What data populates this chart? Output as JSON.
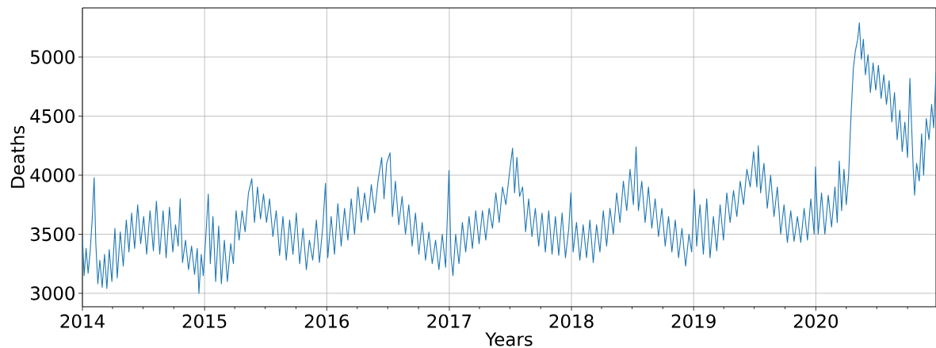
{
  "chart_data": {
    "type": "line",
    "xlabel": "Years",
    "ylabel": "Deaths",
    "grid": true,
    "marker": "none",
    "line_style": "solid",
    "xlim": [
      "2014-01-01",
      "2020-12-25"
    ],
    "ylim": [
      2886,
      5416
    ],
    "xticks": [
      "2014",
      {
        "value": "2014-04",
        "label": null
      },
      {
        "value": "2014-07",
        "label": null
      },
      {
        "value": "2014-10",
        "label": null
      },
      "2015",
      {
        "value": "2015-04",
        "label": null
      },
      {
        "value": "2015-07",
        "label": null
      },
      {
        "value": "2015-10",
        "label": null
      },
      "2016",
      {
        "value": "2016-04",
        "label": null
      },
      {
        "value": "2016-07",
        "label": null
      },
      {
        "value": "2016-10",
        "label": null
      },
      "2017",
      {
        "value": "2017-04",
        "label": null
      },
      {
        "value": "2017-07",
        "label": null
      },
      {
        "value": "2017-10",
        "label": null
      },
      "2018",
      {
        "value": "2018-04",
        "label": null
      },
      {
        "value": "2018-07",
        "label": null
      },
      {
        "value": "2018-10",
        "label": null
      },
      "2019",
      {
        "value": "2019-04",
        "label": null
      },
      {
        "value": "2019-07",
        "label": null
      },
      {
        "value": "2019-10",
        "label": null
      },
      "2020",
      {
        "value": "2020-04",
        "label": null
      },
      {
        "value": "2020-07",
        "label": null
      },
      {
        "value": "2020-10",
        "label": null
      }
    ],
    "yticks": [
      3000,
      3500,
      4000,
      4500,
      5000
    ],
    "series": [
      {
        "color": "#1f77b4",
        "x": [
          "2014-01-01",
          "2014-01-06",
          "2014-01-12",
          "2014-01-18",
          "2014-01-24",
          "2014-01-30",
          "2014-02-05",
          "2014-02-10",
          "2014-02-16",
          "2014-02-22",
          "2014-03-01",
          "2014-03-08",
          "2014-03-15",
          "2014-03-22",
          "2014-03-30",
          "2014-04-08",
          "2014-04-15",
          "2014-04-24",
          "2014-05-03",
          "2014-05-12",
          "2014-05-20",
          "2014-05-28",
          "2014-06-06",
          "2014-06-15",
          "2014-06-24",
          "2014-07-03",
          "2014-07-12",
          "2014-07-22",
          "2014-08-01",
          "2014-08-10",
          "2014-08-20",
          "2014-08-30",
          "2014-09-08",
          "2014-09-18",
          "2014-09-28",
          "2014-10-06",
          "2014-10-14",
          "2014-10-20",
          "2014-10-27",
          "2014-11-05",
          "2014-11-14",
          "2014-11-23",
          "2014-12-02",
          "2014-12-10",
          "2014-12-15",
          "2014-12-22",
          "2014-12-28",
          "2015-01-05",
          "2015-01-12",
          "2015-01-18",
          "2015-01-26",
          "2015-02-03",
          "2015-02-12",
          "2015-02-20",
          "2015-03-01",
          "2015-03-10",
          "2015-03-20",
          "2015-03-28",
          "2015-04-05",
          "2015-04-14",
          "2015-04-23",
          "2015-05-02",
          "2015-05-12",
          "2015-05-22",
          "2015-05-30",
          "2015-06-08",
          "2015-06-17",
          "2015-06-26",
          "2015-07-05",
          "2015-07-14",
          "2015-07-24",
          "2015-08-03",
          "2015-08-13",
          "2015-08-23",
          "2015-09-02",
          "2015-09-12",
          "2015-09-22",
          "2015-10-02",
          "2015-10-12",
          "2015-10-22",
          "2015-11-01",
          "2015-11-10",
          "2015-11-20",
          "2015-12-01",
          "2015-12-10",
          "2015-12-20",
          "2015-12-28",
          "2016-01-04",
          "2016-01-14",
          "2016-01-24",
          "2016-02-03",
          "2016-02-13",
          "2016-02-23",
          "2016-03-04",
          "2016-03-14",
          "2016-03-24",
          "2016-04-03",
          "2016-04-13",
          "2016-04-23",
          "2016-05-03",
          "2016-05-13",
          "2016-05-23",
          "2016-06-02",
          "2016-06-13",
          "2016-06-20",
          "2016-06-28",
          "2016-07-08",
          "2016-07-15",
          "2016-07-24",
          "2016-08-03",
          "2016-08-13",
          "2016-08-23",
          "2016-09-02",
          "2016-09-12",
          "2016-09-22",
          "2016-10-02",
          "2016-10-12",
          "2016-10-22",
          "2016-11-01",
          "2016-11-11",
          "2016-11-21",
          "2016-12-01",
          "2016-12-11",
          "2016-12-21",
          "2016-12-31",
          "2017-01-06",
          "2017-01-12",
          "2017-01-20",
          "2017-01-30",
          "2017-02-09",
          "2017-02-19",
          "2017-03-01",
          "2017-03-11",
          "2017-03-21",
          "2017-03-31",
          "2017-04-10",
          "2017-04-20",
          "2017-04-30",
          "2017-05-10",
          "2017-05-20",
          "2017-05-30",
          "2017-06-09",
          "2017-06-19",
          "2017-06-29",
          "2017-07-09",
          "2017-07-15",
          "2017-07-22",
          "2017-07-30",
          "2017-08-08",
          "2017-08-17",
          "2017-08-26",
          "2017-09-05",
          "2017-09-15",
          "2017-09-25",
          "2017-10-05",
          "2017-10-15",
          "2017-10-25",
          "2017-11-04",
          "2017-11-14",
          "2017-11-24",
          "2017-12-04",
          "2017-12-14",
          "2017-12-24",
          "2017-12-30",
          "2018-01-06",
          "2018-01-16",
          "2018-01-26",
          "2018-02-05",
          "2018-02-15",
          "2018-02-25",
          "2018-03-07",
          "2018-03-17",
          "2018-03-27",
          "2018-04-06",
          "2018-04-16",
          "2018-04-26",
          "2018-05-06",
          "2018-05-16",
          "2018-05-26",
          "2018-06-05",
          "2018-06-15",
          "2018-06-25",
          "2018-07-05",
          "2018-07-13",
          "2018-07-20",
          "2018-07-30",
          "2018-08-09",
          "2018-08-19",
          "2018-08-29",
          "2018-09-08",
          "2018-09-18",
          "2018-09-28",
          "2018-10-08",
          "2018-10-18",
          "2018-10-28",
          "2018-11-07",
          "2018-11-17",
          "2018-11-27",
          "2018-12-08",
          "2018-12-18",
          "2018-12-26",
          "2019-01-03",
          "2019-01-10",
          "2019-01-20",
          "2019-01-30",
          "2019-02-09",
          "2019-02-19",
          "2019-03-01",
          "2019-03-11",
          "2019-03-21",
          "2019-03-31",
          "2019-04-10",
          "2019-04-20",
          "2019-04-30",
          "2019-05-10",
          "2019-05-20",
          "2019-05-30",
          "2019-06-09",
          "2019-06-19",
          "2019-06-29",
          "2019-07-09",
          "2019-07-13",
          "2019-07-20",
          "2019-07-30",
          "2019-08-09",
          "2019-08-19",
          "2019-08-29",
          "2019-09-08",
          "2019-09-18",
          "2019-09-28",
          "2019-10-08",
          "2019-10-18",
          "2019-10-28",
          "2019-11-07",
          "2019-11-17",
          "2019-11-27",
          "2019-12-07",
          "2019-12-17",
          "2019-12-27",
          "2019-12-31",
          "2020-01-08",
          "2020-01-18",
          "2020-01-28",
          "2020-02-07",
          "2020-02-17",
          "2020-02-27",
          "2020-03-05",
          "2020-03-11",
          "2020-03-18",
          "2020-03-25",
          "2020-04-01",
          "2020-04-08",
          "2020-04-15",
          "2020-04-22",
          "2020-04-28",
          "2020-05-05",
          "2020-05-10",
          "2020-05-16",
          "2020-05-22",
          "2020-05-28",
          "2020-06-05",
          "2020-06-12",
          "2020-06-20",
          "2020-06-28",
          "2020-07-06",
          "2020-07-14",
          "2020-07-22",
          "2020-07-30",
          "2020-08-07",
          "2020-08-15",
          "2020-08-23",
          "2020-08-31",
          "2020-09-08",
          "2020-09-15",
          "2020-09-23",
          "2020-10-01",
          "2020-10-08",
          "2020-10-12",
          "2020-10-18",
          "2020-10-22",
          "2020-10-28",
          "2020-11-05",
          "2020-11-12",
          "2020-11-18",
          "2020-11-26",
          "2020-12-04",
          "2020-12-12",
          "2020-12-18",
          "2020-12-25"
        ],
        "values": [
          3480,
          3150,
          3380,
          3170,
          3350,
          3620,
          3980,
          3420,
          3080,
          3280,
          3050,
          3330,
          3040,
          3370,
          3100,
          3550,
          3130,
          3520,
          3230,
          3620,
          3350,
          3680,
          3380,
          3750,
          3420,
          3650,
          3330,
          3700,
          3360,
          3780,
          3330,
          3700,
          3300,
          3730,
          3350,
          3580,
          3400,
          3800,
          3260,
          3450,
          3200,
          3400,
          3160,
          3380,
          3000,
          3330,
          3150,
          3500,
          3840,
          3250,
          3650,
          3100,
          3570,
          3080,
          3450,
          3100,
          3420,
          3250,
          3700,
          3450,
          3700,
          3520,
          3850,
          3970,
          3600,
          3900,
          3630,
          3840,
          3600,
          3800,
          3480,
          3700,
          3320,
          3650,
          3280,
          3620,
          3330,
          3680,
          3250,
          3550,
          3200,
          3450,
          3280,
          3620,
          3260,
          3560,
          3930,
          3300,
          3650,
          3330,
          3760,
          3400,
          3720,
          3450,
          3800,
          3500,
          3900,
          3600,
          3850,
          3620,
          3920,
          3680,
          3950,
          4150,
          3800,
          4100,
          4190,
          3650,
          3950,
          3580,
          3820,
          3500,
          3750,
          3400,
          3680,
          3330,
          3600,
          3280,
          3520,
          3250,
          3450,
          3200,
          3500,
          3220,
          4040,
          3320,
          3150,
          3500,
          3250,
          3600,
          3350,
          3650,
          3380,
          3700,
          3420,
          3700,
          3450,
          3720,
          3550,
          3850,
          3600,
          3900,
          3750,
          4000,
          4230,
          3850,
          4150,
          3820,
          3900,
          3520,
          3800,
          3480,
          3720,
          3400,
          3680,
          3350,
          3700,
          3330,
          3650,
          3320,
          3680,
          3300,
          3550,
          3850,
          3350,
          3600,
          3280,
          3580,
          3300,
          3620,
          3260,
          3580,
          3350,
          3700,
          3400,
          3720,
          3500,
          3850,
          3600,
          3950,
          3700,
          4050,
          3750,
          4240,
          3700,
          3950,
          3600,
          3900,
          3550,
          3800,
          3480,
          3720,
          3400,
          3650,
          3350,
          3620,
          3300,
          3550,
          3230,
          3500,
          3350,
          3880,
          3400,
          3750,
          3330,
          3800,
          3300,
          3650,
          3360,
          3750,
          3450,
          3850,
          3600,
          3870,
          3650,
          3950,
          3750,
          4050,
          3900,
          4200,
          3900,
          4250,
          3850,
          4100,
          3720,
          4000,
          3650,
          3900,
          3500,
          3750,
          3430,
          3700,
          3440,
          3650,
          3430,
          3720,
          3450,
          3800,
          3500,
          4070,
          3500,
          3850,
          3500,
          3830,
          3560,
          3900,
          3600,
          4120,
          3700,
          4050,
          3750,
          4000,
          4500,
          4900,
          5050,
          5150,
          5290,
          4980,
          5150,
          4850,
          5020,
          4700,
          4950,
          4720,
          4930,
          4650,
          4850,
          4600,
          4800,
          4450,
          4700,
          4300,
          4550,
          4200,
          4450,
          4150,
          4820,
          4500,
          4050,
          3830,
          4100,
          3950,
          4350,
          4000,
          4480,
          4300,
          4600,
          4400,
          4870
        ]
      }
    ]
  }
}
